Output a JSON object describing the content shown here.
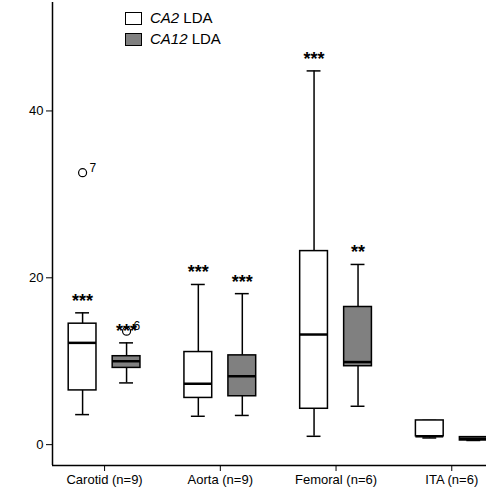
{
  "chart_data": {
    "type": "box",
    "categories": [
      "Carotid (n=9)",
      "Aorta (n=9)",
      "Femoral (n=6)",
      "ITA (n=6)"
    ],
    "series": [
      {
        "name": "CA2 LDA",
        "color": "#ffffff",
        "min": [
          3.6,
          3.4,
          1.0,
          0.8
        ],
        "q1": [
          6.5,
          5.6,
          4.3,
          1.0
        ],
        "median": [
          12.2,
          7.3,
          13.2,
          1.0
        ],
        "q3": [
          14.5,
          11.1,
          23.2,
          2.9
        ],
        "max": [
          15.8,
          19.2,
          44.8,
          2.9
        ],
        "outliers": [
          [
            {
              "value": 32.6,
              "label": "7"
            }
          ],
          [],
          [],
          []
        ],
        "annotations": [
          "***",
          "***",
          "***",
          null
        ]
      },
      {
        "name": "CA12 LDA",
        "color": "#808080",
        "min": [
          7.4,
          3.5,
          4.6,
          0.5
        ],
        "q1": [
          9.2,
          5.8,
          9.4,
          0.5
        ],
        "median": [
          10.0,
          8.2,
          9.9,
          0.7
        ],
        "q3": [
          10.6,
          10.7,
          16.5,
          0.9
        ],
        "max": [
          12.2,
          18.1,
          21.6,
          0.9
        ],
        "outliers": [
          [
            {
              "value": 13.6,
              "label": "6"
            }
          ],
          [],
          [],
          []
        ],
        "annotations": [
          "***",
          "***",
          "**",
          null
        ]
      }
    ],
    "ylim": [
      -2.5,
      53
    ],
    "yticks": [
      0,
      20,
      40
    ],
    "legend": "top-left"
  }
}
